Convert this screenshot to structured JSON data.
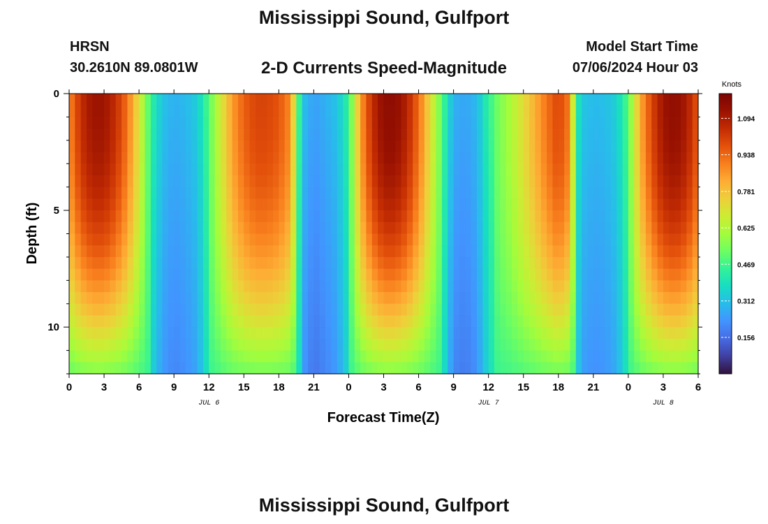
{
  "header": {
    "title": "Mississippi Sound, Gulfport",
    "station": "HRSN",
    "coordinates": "30.2610N  89.0801W",
    "subtitle": "2-D Currents Speed-Magnitude",
    "model_start_label": "Model Start Time",
    "model_start_value": "07/06/2024 Hour 03"
  },
  "footer": {
    "title": "Mississippi Sound, Gulfport"
  },
  "chart_data": {
    "type": "heatmap",
    "title": "2-D Currents Speed-Magnitude",
    "xlabel": "Forecast Time(Z)",
    "ylabel": "Depth (ft)",
    "x_range_hours": [
      0,
      54
    ],
    "x_tick_labels": [
      "0",
      "3",
      "6",
      "9",
      "12",
      "15",
      "18",
      "21",
      "0",
      "3",
      "6",
      "9",
      "12",
      "15",
      "18",
      "21",
      "0",
      "3",
      "6"
    ],
    "date_labels": [
      {
        "text": "JUL 6",
        "hour": 12
      },
      {
        "text": "JUL 7",
        "hour": 36
      },
      {
        "text": "JUL 8",
        "hour": 51
      }
    ],
    "y_range_ft": [
      0,
      12
    ],
    "y_tick_labels": [
      "0",
      "5",
      "10"
    ],
    "y_ticks": [
      0,
      5,
      10
    ],
    "colorbar": {
      "unit_label": "Knots",
      "ticks": [
        "1.094",
        "0.938",
        "0.781",
        "0.625",
        "0.469",
        "0.312",
        "0.156"
      ],
      "tick_values": [
        1.094,
        0.938,
        0.781,
        0.625,
        0.469,
        0.312,
        0.156
      ],
      "range": [
        0.0,
        1.2
      ]
    },
    "surface_speed_profile_knots": [
      [
        0,
        0.88
      ],
      [
        1,
        1.05
      ],
      [
        2,
        1.12
      ],
      [
        3,
        1.12
      ],
      [
        4,
        1.05
      ],
      [
        5,
        0.92
      ],
      [
        6,
        0.7
      ],
      [
        7,
        0.45
      ],
      [
        8,
        0.32
      ],
      [
        9,
        0.28
      ],
      [
        10,
        0.3
      ],
      [
        11,
        0.34
      ],
      [
        12,
        0.5
      ],
      [
        13,
        0.68
      ],
      [
        14,
        0.85
      ],
      [
        15,
        0.95
      ],
      [
        16,
        1.0
      ],
      [
        17,
        1.0
      ],
      [
        18,
        0.97
      ],
      [
        19,
        0.88
      ],
      [
        19.5,
        0.6
      ],
      [
        20,
        0.32
      ],
      [
        21,
        0.25
      ],
      [
        22,
        0.28
      ],
      [
        23,
        0.32
      ],
      [
        24,
        0.45
      ],
      [
        25,
        0.85
      ],
      [
        26,
        1.05
      ],
      [
        27,
        1.15
      ],
      [
        28,
        1.15
      ],
      [
        29,
        1.08
      ],
      [
        30,
        0.93
      ],
      [
        31,
        0.72
      ],
      [
        32,
        0.5
      ],
      [
        33,
        0.28
      ],
      [
        34,
        0.26
      ],
      [
        35,
        0.3
      ],
      [
        36,
        0.45
      ],
      [
        37,
        0.55
      ],
      [
        38,
        0.62
      ],
      [
        39,
        0.72
      ],
      [
        40,
        0.82
      ],
      [
        41,
        0.92
      ],
      [
        42,
        1.0
      ],
      [
        43,
        0.9
      ],
      [
        43.5,
        0.45
      ],
      [
        44,
        0.33
      ],
      [
        45,
        0.3
      ],
      [
        46,
        0.31
      ],
      [
        47,
        0.35
      ],
      [
        48,
        0.5
      ],
      [
        49,
        0.82
      ],
      [
        50,
        1.0
      ],
      [
        51,
        1.12
      ],
      [
        52,
        1.15
      ],
      [
        53,
        1.1
      ],
      [
        54,
        0.96
      ]
    ],
    "depth_structure": "speeds decrease toward bottom (12 ft); minima near hours 9, 21, 33 and 45",
    "grid": false
  }
}
